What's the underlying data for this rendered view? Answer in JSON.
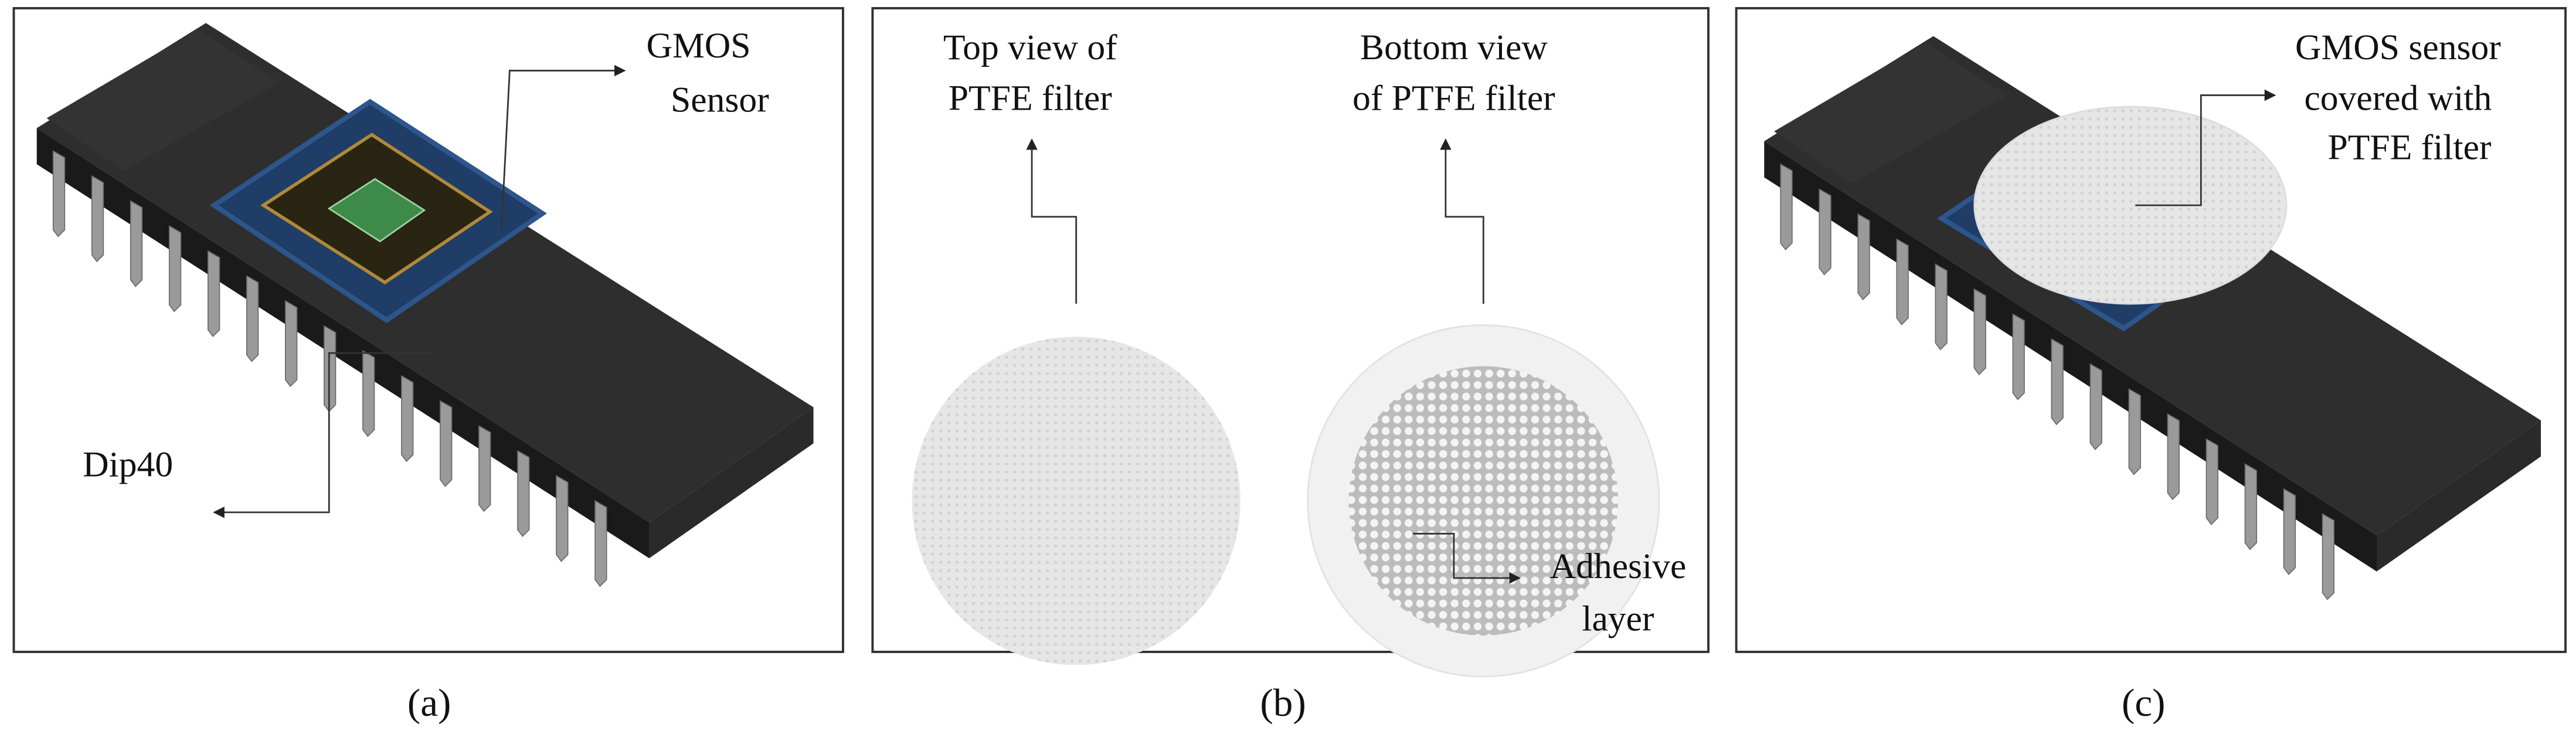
{
  "panels": [
    {
      "caption": "(a)",
      "labels": [
        {
          "lines": [
            "GMOS",
            "Sensor"
          ]
        },
        {
          "lines": [
            "Dip40"
          ]
        }
      ]
    },
    {
      "caption": "(b)",
      "labels": [
        {
          "lines": [
            "Top view of",
            "PTFE filter"
          ]
        },
        {
          "lines": [
            "Bottom view",
            "of PTFE filter"
          ]
        },
        {
          "lines": [
            "Adhesive",
            "layer"
          ]
        }
      ]
    },
    {
      "caption": "(c)",
      "labels": [
        {
          "lines": [
            "GMOS sensor",
            "covered with",
            "PTFE filter"
          ]
        }
      ]
    }
  ]
}
